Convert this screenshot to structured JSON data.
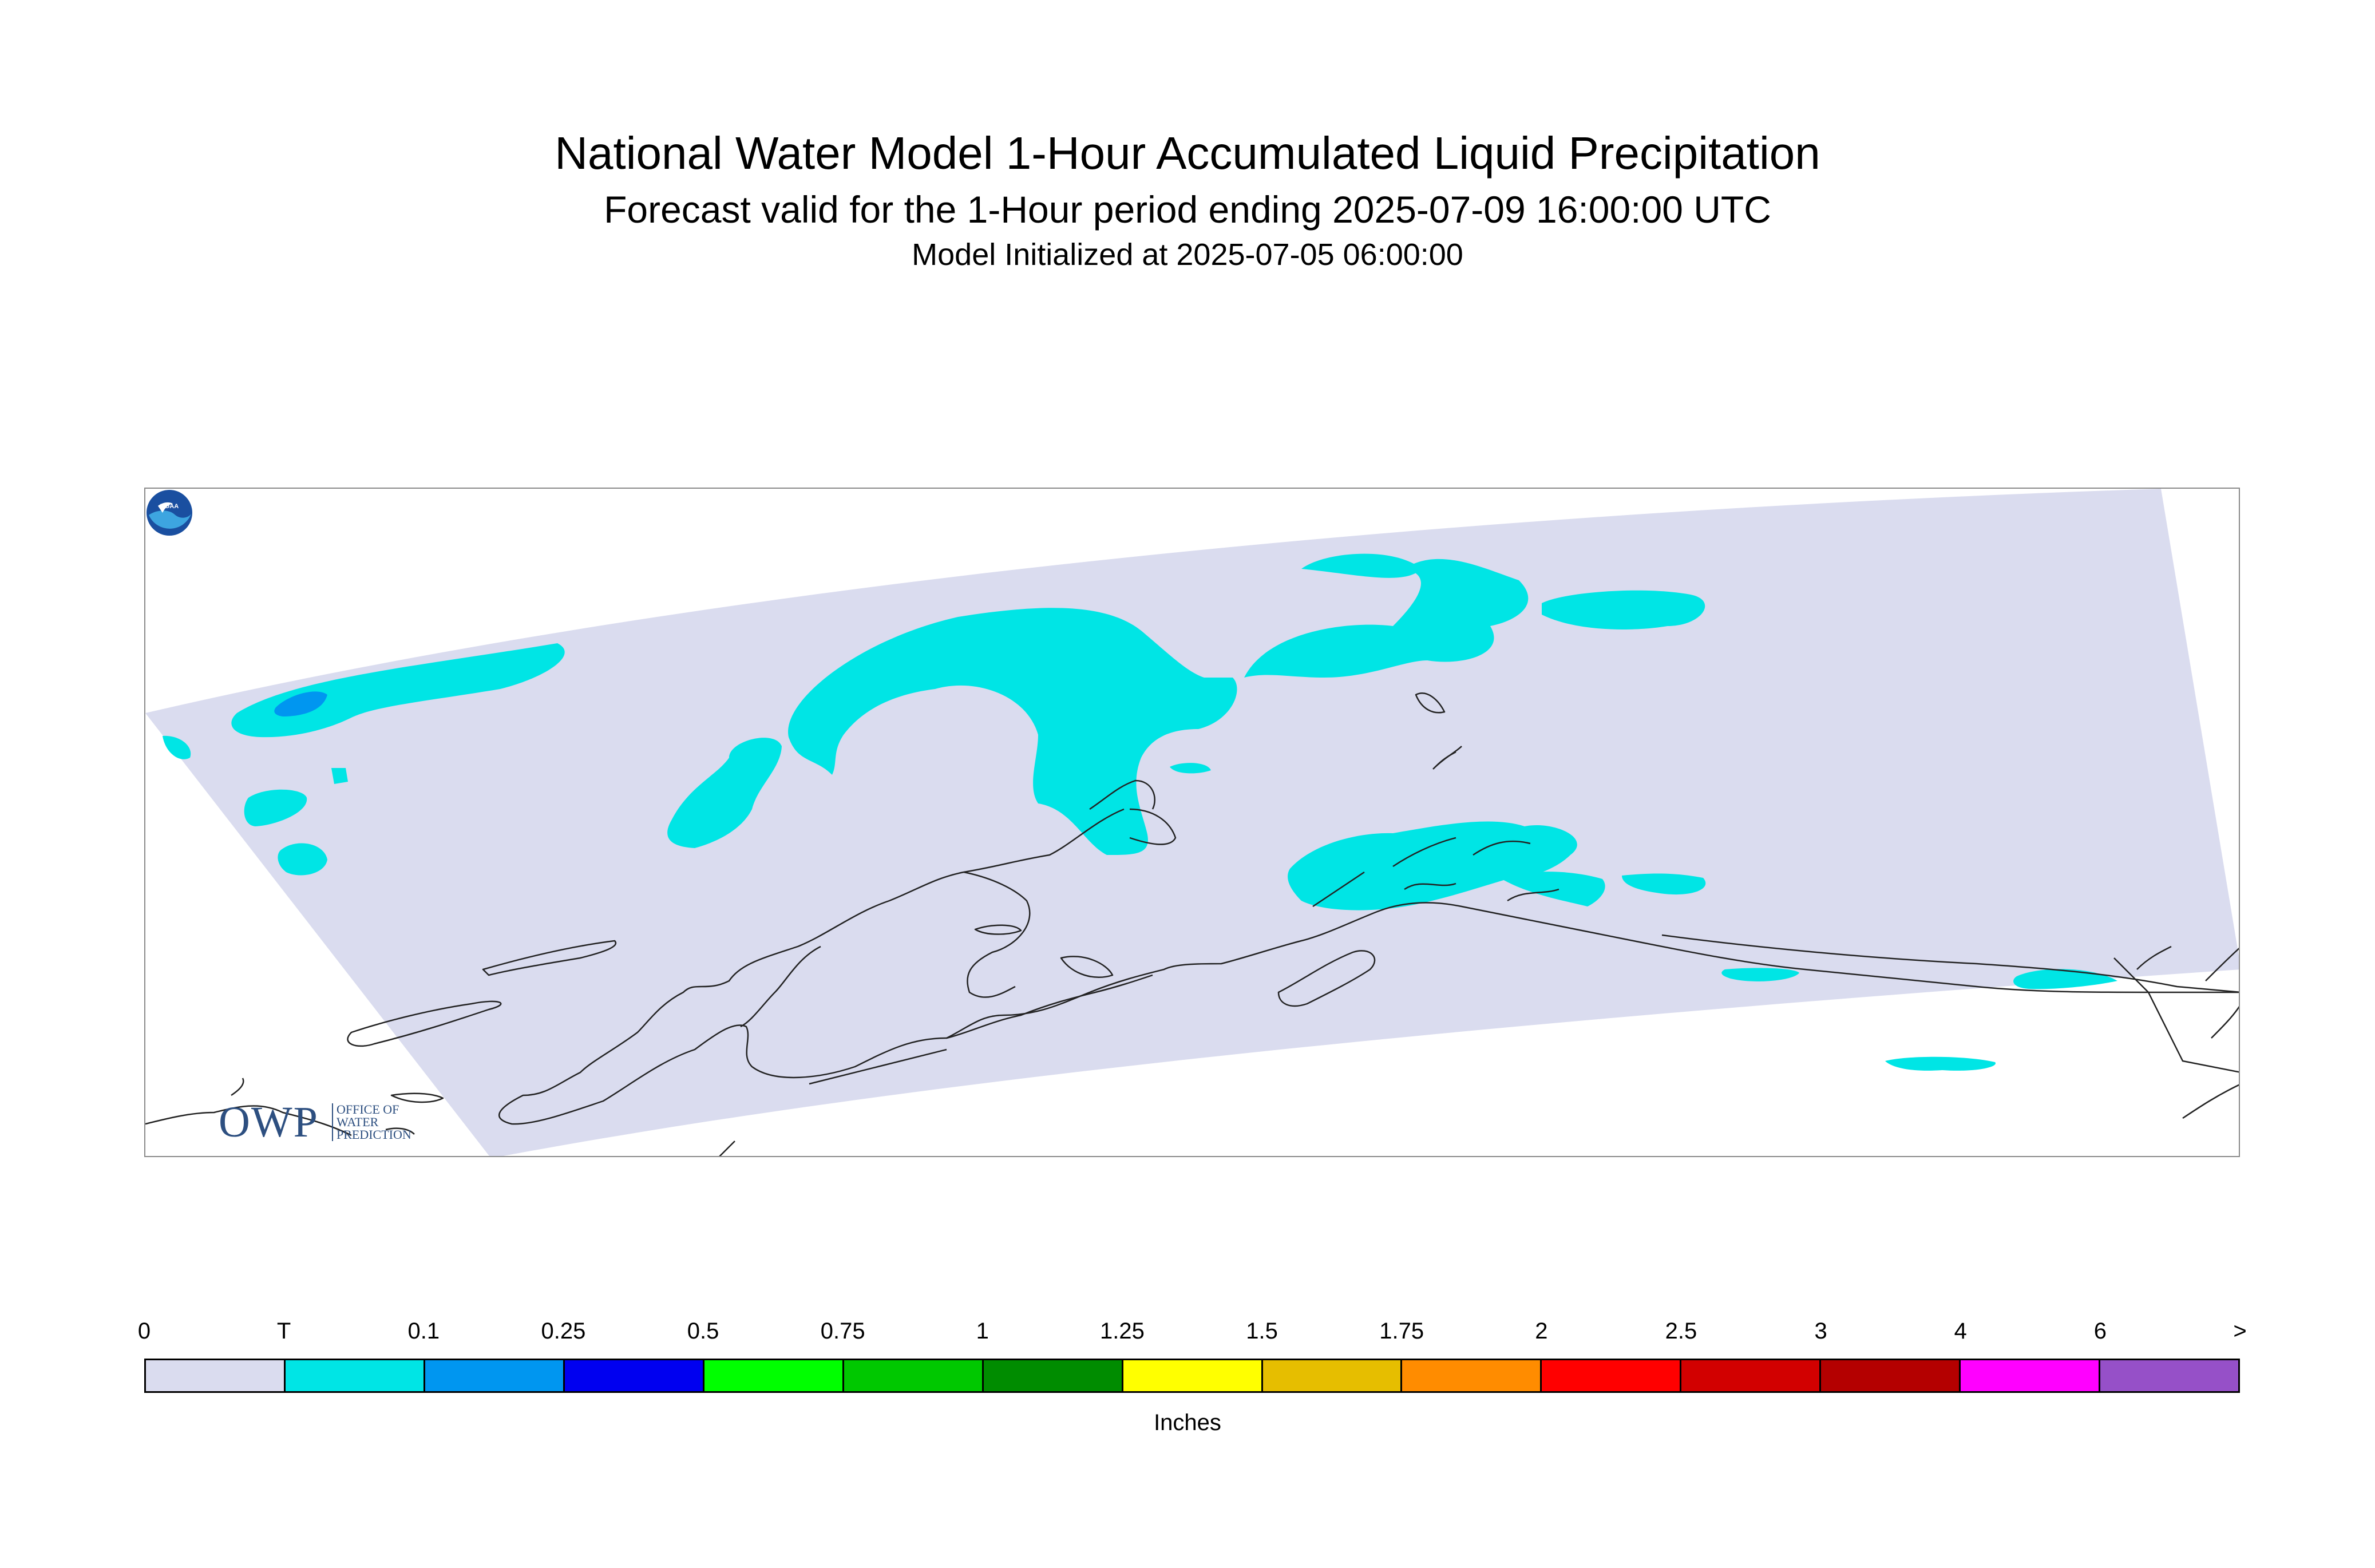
{
  "title": "National Water Model 1-Hour Accumulated Liquid Precipitation",
  "subtitle": "Forecast valid for the 1-Hour period ending 2025-07-09 16:00:00 UTC",
  "initialized": "Model Initialized at 2025-07-05 06:00:00",
  "logos": {
    "owp_letters": "OWP",
    "owp_line1": "OFFICE OF",
    "owp_line2": "WATER",
    "owp_line3": "PREDICTION",
    "noaa": "NOAA"
  },
  "colors": {
    "domain_fill": "#dadcef",
    "coastline": "#222222",
    "trace": "#00e5e5",
    "light_blue": "#0096f0"
  },
  "legend": {
    "units": "Inches",
    "labels": [
      "0",
      "T",
      "0.1",
      "0.25",
      "0.5",
      "0.75",
      "1",
      "1.25",
      "1.5",
      "1.75",
      "2",
      "2.5",
      "3",
      "4",
      "6",
      ">"
    ],
    "colors": [
      "#dadcef",
      "#00e5e5",
      "#0096f0",
      "#0000f0",
      "#00ff00",
      "#00c800",
      "#008c00",
      "#ffff00",
      "#e6be00",
      "#ff8c00",
      "#ff0000",
      "#d20000",
      "#b40000",
      "#ff00ff",
      "#9650c8"
    ]
  }
}
